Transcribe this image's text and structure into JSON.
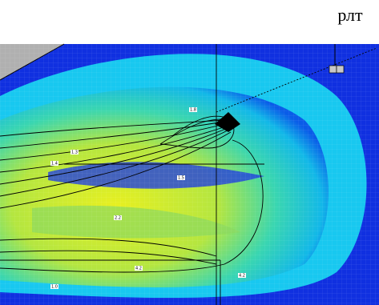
{
  "caption": "рлт",
  "contour_labels": [
    "1.8",
    "1.3",
    "1.4",
    "1.5",
    "2.2",
    "4.2",
    "1.0",
    "4.2"
  ]
}
